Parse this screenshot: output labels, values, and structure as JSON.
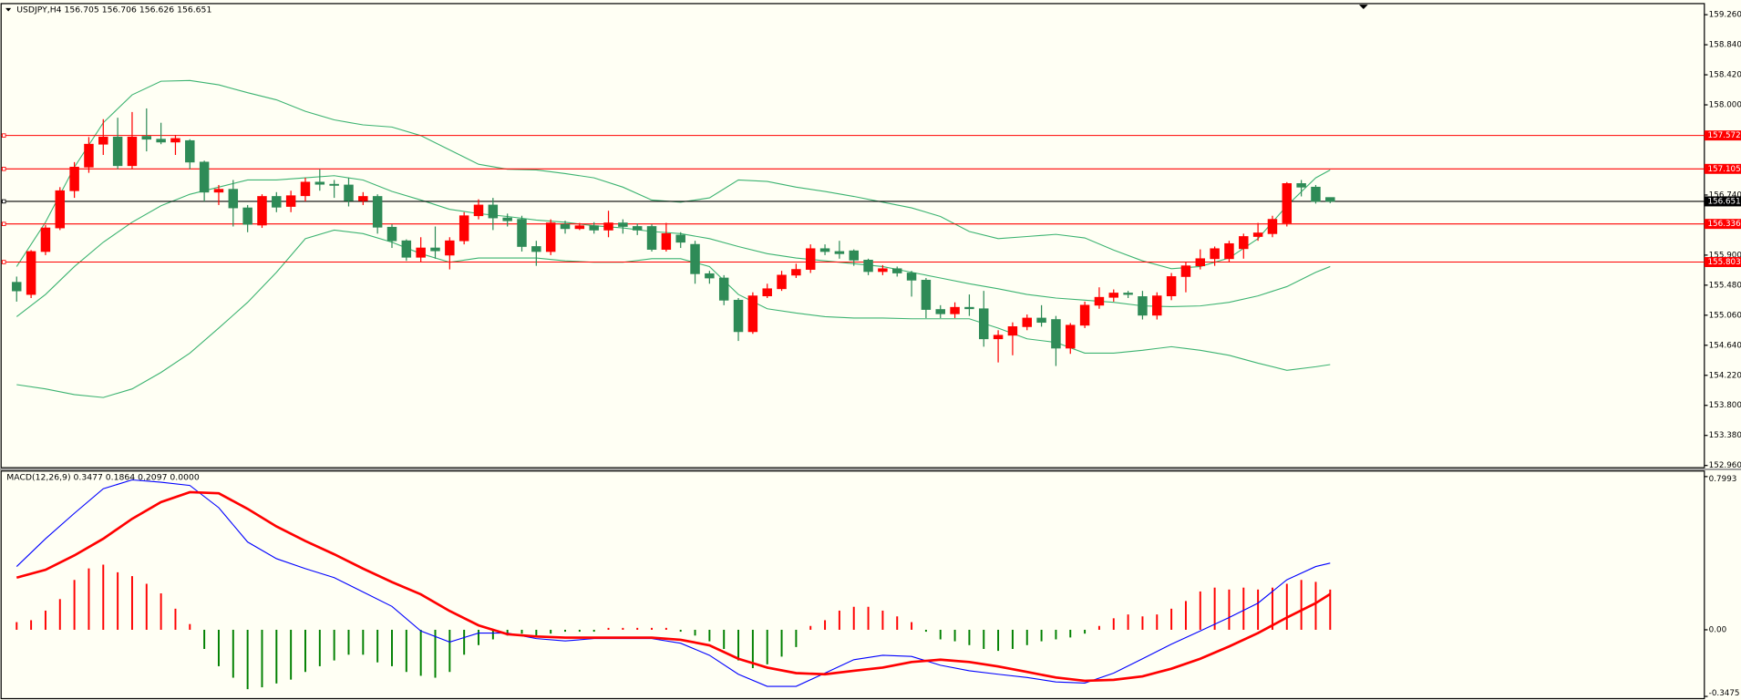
{
  "chart_data": [
    {
      "type": "candlestick",
      "title": "USDJPY,H4  156.705 156.706 156.626 156.651",
      "up_color": "#ff0000",
      "down_color": "#2e8b57",
      "open": [
        155.52,
        155.35,
        155.95,
        156.28,
        156.8,
        157.13,
        157.45,
        157.55,
        157.15,
        157.56,
        157.52,
        157.48,
        157.5,
        157.2,
        156.78,
        156.82,
        156.56,
        156.32,
        156.72,
        156.58,
        156.73,
        156.92,
        156.89,
        156.88,
        156.66,
        156.72,
        156.29,
        156.1,
        155.87,
        156.0,
        155.9,
        156.1,
        156.45,
        156.6,
        156.42,
        156.4,
        156.02,
        155.95,
        156.33,
        156.27,
        156.31,
        156.25,
        156.35,
        156.3,
        156.3,
        155.98,
        156.18,
        156.05,
        155.64,
        155.58,
        155.27,
        154.83,
        155.33,
        155.43,
        155.62,
        155.7,
        155.99,
        155.95,
        155.96,
        155.83,
        155.67,
        155.71,
        155.65,
        155.55,
        155.14,
        155.08,
        155.17,
        155.15,
        154.73,
        154.78,
        154.9,
        155.02,
        155.0,
        154.6,
        154.92,
        155.2,
        155.31,
        155.37,
        155.32,
        155.06,
        155.33,
        155.6,
        155.75,
        155.85,
        155.85,
        155.99,
        156.16,
        156.2,
        156.35,
        156.9,
        156.85,
        156.705
      ],
      "high": [
        155.6,
        155.97,
        156.32,
        156.85,
        157.2,
        157.55,
        157.8,
        157.82,
        157.9,
        157.95,
        157.75,
        157.58,
        157.52,
        157.22,
        156.88,
        156.95,
        156.6,
        156.75,
        156.78,
        156.8,
        156.98,
        157.1,
        156.95,
        156.98,
        156.78,
        156.75,
        156.33,
        156.12,
        156.15,
        156.3,
        156.15,
        156.5,
        156.68,
        156.7,
        156.48,
        156.45,
        156.1,
        156.4,
        156.38,
        156.35,
        156.36,
        156.52,
        156.4,
        156.34,
        156.33,
        156.35,
        156.22,
        156.1,
        155.68,
        155.62,
        155.3,
        155.38,
        155.5,
        155.68,
        155.78,
        156.05,
        156.05,
        156.1,
        155.98,
        155.85,
        155.76,
        155.74,
        155.68,
        155.58,
        155.2,
        155.24,
        155.35,
        155.4,
        154.85,
        154.96,
        155.07,
        155.2,
        155.05,
        154.95,
        155.25,
        155.45,
        155.42,
        155.4,
        155.4,
        155.38,
        155.65,
        155.8,
        155.98,
        156.02,
        156.1,
        156.2,
        156.35,
        156.45,
        156.92,
        156.95,
        156.88,
        156.706
      ],
      "low": [
        155.25,
        155.3,
        155.9,
        156.25,
        156.7,
        157.05,
        157.3,
        157.1,
        157.1,
        157.35,
        157.45,
        157.3,
        157.1,
        156.65,
        156.6,
        156.3,
        156.22,
        156.28,
        156.5,
        156.5,
        156.65,
        156.8,
        156.7,
        156.58,
        156.6,
        156.2,
        156.0,
        155.82,
        155.8,
        155.85,
        155.7,
        156.05,
        156.4,
        156.25,
        156.3,
        155.95,
        155.75,
        155.9,
        156.2,
        156.25,
        156.2,
        156.15,
        156.2,
        156.18,
        155.95,
        155.95,
        156.0,
        155.5,
        155.5,
        155.2,
        154.7,
        154.8,
        155.3,
        155.4,
        155.58,
        155.65,
        155.9,
        155.85,
        155.75,
        155.62,
        155.62,
        155.6,
        155.32,
        155.02,
        155.02,
        155.02,
        155.05,
        154.62,
        154.4,
        154.5,
        154.85,
        154.9,
        154.35,
        154.52,
        154.88,
        155.15,
        155.25,
        155.3,
        155.0,
        155.0,
        155.27,
        155.38,
        155.7,
        155.75,
        155.8,
        155.85,
        156.1,
        156.15,
        156.3,
        156.72,
        156.62,
        156.626
      ],
      "close": [
        155.4,
        155.95,
        156.28,
        156.8,
        157.13,
        157.45,
        157.55,
        157.15,
        157.55,
        157.52,
        157.48,
        157.53,
        157.2,
        156.78,
        156.82,
        156.56,
        156.33,
        156.72,
        156.57,
        156.73,
        156.92,
        156.89,
        156.88,
        156.66,
        156.72,
        156.29,
        156.1,
        155.87,
        156.0,
        155.96,
        156.1,
        156.45,
        156.6,
        156.42,
        156.38,
        156.02,
        155.95,
        156.35,
        156.27,
        156.31,
        156.25,
        156.35,
        156.3,
        156.25,
        155.98,
        156.2,
        156.08,
        155.64,
        155.58,
        155.27,
        154.83,
        155.33,
        155.43,
        155.62,
        155.7,
        155.99,
        155.95,
        155.92,
        155.83,
        155.67,
        155.71,
        155.65,
        155.55,
        155.14,
        155.08,
        155.17,
        155.15,
        154.73,
        154.78,
        154.9,
        155.02,
        154.96,
        154.6,
        154.92,
        155.2,
        155.31,
        155.37,
        155.35,
        155.06,
        155.33,
        155.6,
        155.75,
        155.85,
        155.99,
        156.06,
        156.16,
        156.21,
        156.4,
        156.9,
        156.85,
        156.65,
        156.651
      ],
      "bands": {
        "color": "#3cb371",
        "x": [
          0,
          2,
          4,
          6,
          8,
          10,
          12,
          14,
          16,
          18,
          20,
          22,
          24,
          26,
          28,
          30,
          32,
          34,
          36,
          38,
          40,
          42,
          44,
          46,
          48,
          50,
          52,
          54,
          56,
          58,
          60,
          62,
          64,
          66,
          68,
          70,
          72,
          74,
          76,
          78,
          80,
          82,
          84,
          86,
          88,
          90,
          91
        ],
        "series": [
          {
            "values": [
              155.74,
              156.36,
              157.13,
              157.75,
              158.14,
              158.33,
              158.34,
              158.28,
              158.17,
              158.07,
              157.91,
              157.79,
              157.72,
              157.69,
              157.57,
              157.37,
              157.17,
              157.1,
              157.09,
              157.04,
              156.98,
              156.85,
              156.67,
              156.64,
              156.7,
              156.95,
              156.93,
              156.85,
              156.79,
              156.72,
              156.64,
              156.56,
              156.44,
              156.23,
              156.13,
              156.16,
              156.19,
              156.14,
              155.97,
              155.82,
              155.71,
              155.74,
              155.86,
              156.13,
              156.59,
              156.98,
              157.09
            ]
          },
          {
            "values": [
              155.04,
              155.35,
              155.74,
              156.08,
              156.36,
              156.59,
              156.75,
              156.85,
              156.95,
              156.95,
              156.98,
              157.01,
              156.95,
              156.79,
              156.67,
              156.54,
              156.48,
              156.44,
              156.39,
              156.36,
              156.31,
              156.28,
              156.23,
              156.2,
              156.13,
              156.02,
              155.92,
              155.86,
              155.82,
              155.78,
              155.74,
              155.66,
              155.58,
              155.5,
              155.43,
              155.35,
              155.3,
              155.27,
              155.24,
              155.19,
              155.18,
              155.19,
              155.24,
              155.33,
              155.46,
              155.66,
              155.74
            ]
          },
          {
            "values": [
              154.09,
              154.03,
              153.95,
              153.91,
              154.03,
              154.26,
              154.53,
              154.88,
              155.24,
              155.66,
              156.13,
              156.25,
              156.2,
              156.08,
              155.92,
              155.8,
              155.86,
              155.86,
              155.86,
              155.82,
              155.8,
              155.8,
              155.85,
              155.85,
              155.74,
              155.35,
              155.15,
              155.09,
              155.04,
              155.02,
              155.02,
              155.01,
              155.01,
              155.01,
              154.88,
              154.73,
              154.68,
              154.53,
              154.53,
              154.57,
              154.62,
              154.57,
              154.5,
              154.39,
              154.29,
              154.34,
              154.37
            ]
          }
        ]
      },
      "levels": [
        {
          "value": 157.572,
          "label": "157.572",
          "color": "#ff0000"
        },
        {
          "value": 157.105,
          "label": "157.105",
          "color": "#ff0000"
        },
        {
          "value": 156.336,
          "label": "156.336",
          "color": "#ff0000"
        },
        {
          "value": 155.803,
          "label": "155.803",
          "color": "#ff0000"
        },
        {
          "value": 156.651,
          "label": "156.651",
          "color": "#000000"
        }
      ],
      "ylim": [
        152.96,
        159.26
      ],
      "yticks": [
        {
          "value": 159.26,
          "label": "159.260"
        },
        {
          "value": 158.84,
          "label": "158.840"
        },
        {
          "value": 158.42,
          "label": "158.420"
        },
        {
          "value": 158,
          "label": "158.000"
        },
        {
          "value": 156.74,
          "label": "156.740"
        },
        {
          "value": 155.9,
          "label": "155.900"
        },
        {
          "value": 155.48,
          "label": "155.480"
        },
        {
          "value": 155.06,
          "label": "155.060"
        },
        {
          "value": 154.64,
          "label": "154.640"
        },
        {
          "value": 154.22,
          "label": "154.220"
        },
        {
          "value": 153.8,
          "label": "153.800"
        },
        {
          "value": 153.38,
          "label": "153.380"
        },
        {
          "value": 152.96,
          "label": "152.960"
        }
      ]
    },
    {
      "type": "macd",
      "title": "MACD(12,26,9) 0.3477 0.1864 0.2097 0.0000",
      "positive_color": "#ff0000",
      "negative_color": "#008000",
      "histogram": [
        0.04,
        0.05,
        0.1,
        0.16,
        0.26,
        0.32,
        0.34,
        0.3,
        0.28,
        0.24,
        0.19,
        0.11,
        0.03,
        -0.1,
        -0.19,
        -0.25,
        -0.31,
        -0.3,
        -0.28,
        -0.26,
        -0.22,
        -0.19,
        -0.16,
        -0.13,
        -0.13,
        -0.17,
        -0.19,
        -0.22,
        -0.24,
        -0.25,
        -0.22,
        -0.13,
        -0.08,
        -0.05,
        -0.03,
        -0.02,
        -0.03,
        -0.02,
        -0.01,
        -0.01,
        -0.01,
        0.01,
        0.01,
        0.01,
        0.01,
        0.01,
        -0.01,
        -0.03,
        -0.06,
        -0.1,
        -0.16,
        -0.2,
        -0.18,
        -0.14,
        -0.09,
        0.02,
        0.05,
        0.1,
        0.12,
        0.12,
        0.1,
        0.07,
        0.04,
        -0.01,
        -0.05,
        -0.06,
        -0.08,
        -0.1,
        -0.11,
        -0.1,
        -0.08,
        -0.06,
        -0.05,
        -0.04,
        -0.02,
        0.02,
        0.06,
        0.08,
        0.07,
        0.08,
        0.11,
        0.15,
        0.2,
        0.22,
        0.21,
        0.22,
        0.21,
        0.22,
        0.24,
        0.26,
        0.25,
        0.2097
      ],
      "x": [
        0,
        2,
        4,
        6,
        8,
        10,
        12,
        14,
        16,
        18,
        20,
        22,
        24,
        26,
        28,
        30,
        32,
        34,
        36,
        38,
        40,
        42,
        44,
        46,
        48,
        50,
        52,
        54,
        56,
        58,
        60,
        62,
        64,
        66,
        68,
        70,
        72,
        74,
        76,
        78,
        80,
        82,
        84,
        86,
        88,
        90,
        91
      ],
      "series": [
        {
          "color": "#0000ff",
          "values": [
            0.33,
            0.475,
            0.608,
            0.736,
            0.782,
            0.77,
            0.753,
            0.637,
            0.458,
            0.371,
            0.319,
            0.272,
            0.197,
            0.122,
            -0.006,
            -0.064,
            -0.017,
            -0.017,
            -0.046,
            -0.058,
            -0.046,
            -0.046,
            -0.046,
            -0.07,
            -0.133,
            -0.232,
            -0.295,
            -0.295,
            -0.226,
            -0.156,
            -0.133,
            -0.139,
            -0.185,
            -0.214,
            -0.232,
            -0.249,
            -0.272,
            -0.278,
            -0.226,
            -0.151,
            -0.075,
            -0.006,
            0.064,
            0.139,
            0.261,
            0.33,
            0.3477
          ]
        },
        {
          "color": "#ff0000",
          "values": [
            0.272,
            0.313,
            0.388,
            0.475,
            0.579,
            0.666,
            0.718,
            0.712,
            0.631,
            0.539,
            0.463,
            0.394,
            0.319,
            0.249,
            0.185,
            0.098,
            0.023,
            -0.023,
            -0.035,
            -0.041,
            -0.041,
            -0.041,
            -0.041,
            -0.052,
            -0.081,
            -0.151,
            -0.197,
            -0.226,
            -0.232,
            -0.214,
            -0.197,
            -0.168,
            -0.156,
            -0.168,
            -0.191,
            -0.22,
            -0.249,
            -0.266,
            -0.261,
            -0.243,
            -0.203,
            -0.151,
            -0.087,
            -0.017,
            0.064,
            0.139,
            0.1864
          ]
        }
      ],
      "ylim": [
        -0.3475,
        0.7993
      ],
      "yticks": [
        0.7993,
        {
          "value": 0,
          "label": "0.00"
        },
        -0.3475
      ]
    }
  ]
}
